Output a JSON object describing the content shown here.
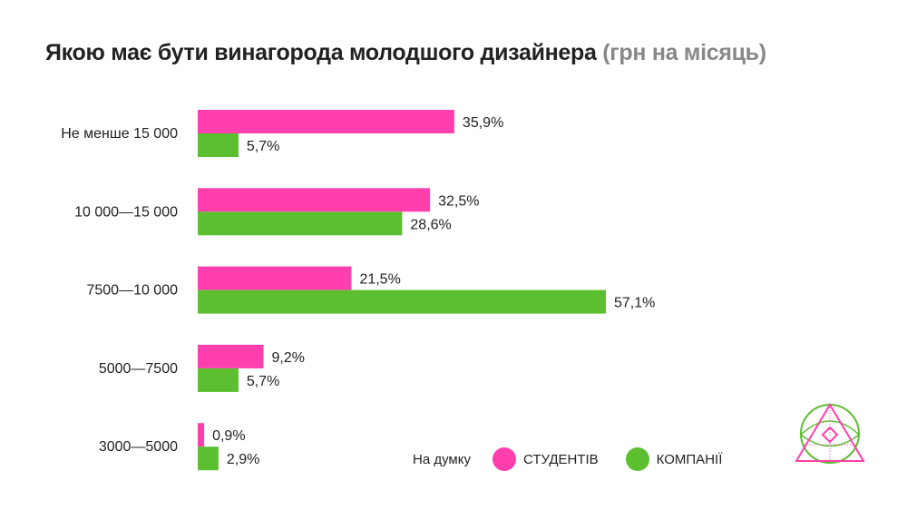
{
  "title": "Якою має бути винагорода молодшого дизайнера",
  "subtitle": "(грн на місяць)",
  "legend": {
    "prefix": "На думку",
    "items": [
      "СТУДЕНТІВ",
      "КОМПАНІЇ"
    ]
  },
  "colors": {
    "students": "#ff3fad",
    "companies": "#5bbf2f"
  },
  "chart_data": {
    "type": "bar",
    "orientation": "horizontal",
    "title": "Якою має бути винагорода молодшого дизайнера (грн на місяць)",
    "categories": [
      "Не менше 15 000",
      "10 000—15 000",
      "7500—10 000",
      "5000—7500",
      "3000—5000"
    ],
    "series": [
      {
        "name": "СТУДЕНТІВ",
        "values": [
          35.9,
          32.5,
          21.5,
          9.2,
          0.9
        ],
        "labels": [
          "35,9%",
          "32,5%",
          "21,5%",
          "9,2%",
          "0,9%"
        ]
      },
      {
        "name": "КОМПАНІЇ",
        "values": [
          5.7,
          28.6,
          57.1,
          5.7,
          2.9
        ],
        "labels": [
          "5,7%",
          "28,6%",
          "57,1%",
          "5,7%",
          "2,9%"
        ]
      }
    ],
    "xlim": [
      0,
      57.1
    ],
    "grid": false,
    "legend_position": "bottom-right"
  }
}
